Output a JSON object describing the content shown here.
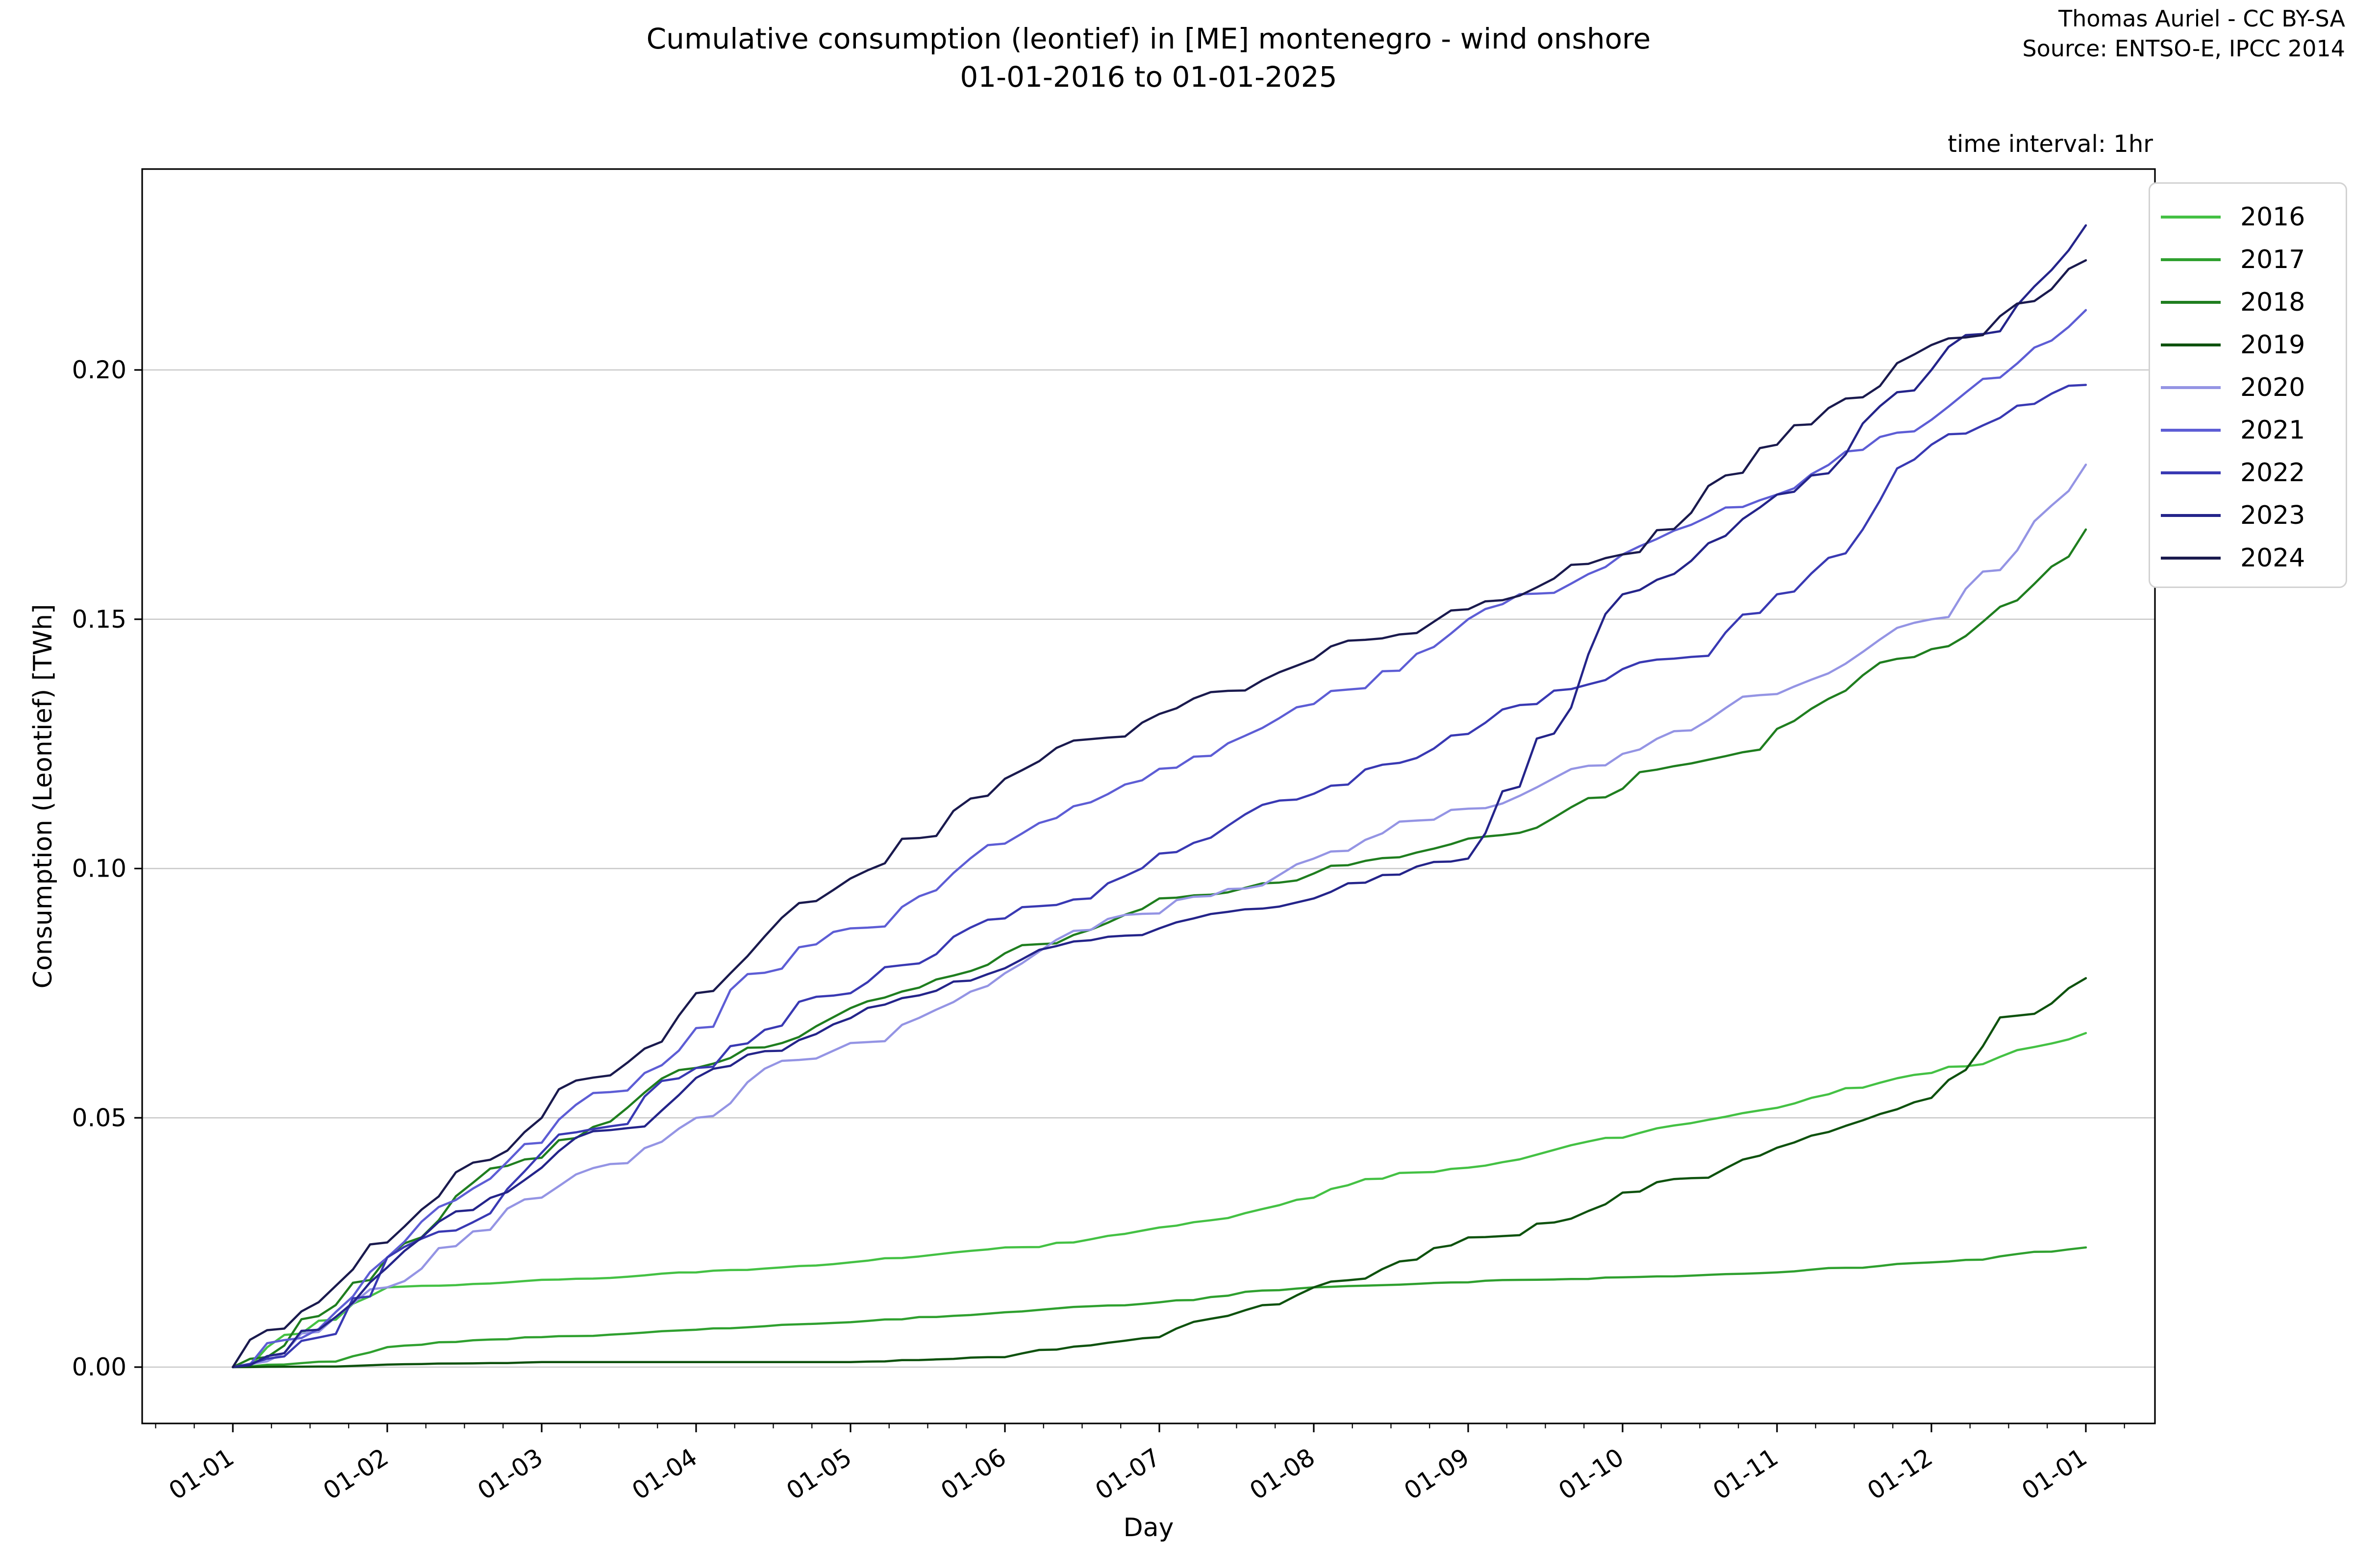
{
  "figure": {
    "title_line1": "Cumulative consumption (leontief) in [ME] montenegro - wind onshore",
    "title_line2": "01-01-2016 to 01-01-2025",
    "attribution_line1": "Thomas Auriel - CC BY-SA",
    "attribution_line2": "Source: ENTSO-E, IPCC 2014",
    "annotation": "time interval: 1hr"
  },
  "chart_data": {
    "type": "line",
    "title": "Cumulative consumption (leontief) in [ME] montenegro - wind onshore 01-01-2016 to 01-01-2025",
    "xlabel": "Day",
    "ylabel": "Consumption (Leontief) [TWh]",
    "x_tick_labels": [
      "01-01",
      "01-02",
      "01-03",
      "01-04",
      "01-05",
      "01-06",
      "01-07",
      "01-08",
      "01-09",
      "01-10",
      "01-11",
      "01-12",
      "01-01"
    ],
    "y_tick_labels": [
      "0.00",
      "0.05",
      "0.10",
      "0.15",
      "0.20"
    ],
    "y_ticks": [
      0.0,
      0.05,
      0.1,
      0.15,
      0.2
    ],
    "xlim_months": [
      -0.59,
      12.45
    ],
    "ylim": [
      -0.0113,
      0.2403
    ],
    "grid": "horizontal",
    "legend_position": "outside-upper-right",
    "units": "TWh",
    "series": [
      {
        "name": "2016",
        "color": "#44c144",
        "monthly_values": [
          0,
          0.016,
          0.0175,
          0.019,
          0.021,
          0.024,
          0.028,
          0.034,
          0.04,
          0.046,
          0.052,
          0.059,
          0.067
        ]
      },
      {
        "name": "2017",
        "color": "#2fa02f",
        "monthly_values": [
          0,
          0.004,
          0.006,
          0.0075,
          0.009,
          0.011,
          0.013,
          0.016,
          0.017,
          0.018,
          0.019,
          0.021,
          0.024
        ]
      },
      {
        "name": "2018",
        "color": "#1f7e1f",
        "monthly_values": [
          0,
          0.022,
          0.042,
          0.06,
          0.072,
          0.083,
          0.094,
          0.099,
          0.106,
          0.116,
          0.128,
          0.144,
          0.168
        ]
      },
      {
        "name": "2019",
        "color": "#0e520e",
        "monthly_values": [
          0,
          0.0005,
          0.001,
          0.001,
          0.001,
          0.002,
          0.006,
          0.016,
          0.026,
          0.035,
          0.044,
          0.054,
          0.078
        ]
      },
      {
        "name": "2020",
        "color": "#9494e4",
        "monthly_values": [
          0,
          0.016,
          0.034,
          0.05,
          0.065,
          0.079,
          0.091,
          0.102,
          0.112,
          0.123,
          0.135,
          0.15,
          0.181
        ]
      },
      {
        "name": "2021",
        "color": "#5d5dd5",
        "monthly_values": [
          0,
          0.022,
          0.045,
          0.068,
          0.088,
          0.105,
          0.12,
          0.133,
          0.15,
          0.163,
          0.175,
          0.19,
          0.212
        ]
      },
      {
        "name": "2022",
        "color": "#3939b3",
        "monthly_values": [
          0,
          0.022,
          0.043,
          0.06,
          0.075,
          0.09,
          0.103,
          0.115,
          0.127,
          0.14,
          0.155,
          0.185,
          0.197
        ]
      },
      {
        "name": "2023",
        "color": "#24248a",
        "monthly_values": [
          0,
          0.02,
          0.04,
          0.058,
          0.07,
          0.08,
          0.088,
          0.094,
          0.102,
          0.155,
          0.175,
          0.2,
          0.229
        ]
      },
      {
        "name": "2024",
        "color": "#1a1a4e",
        "monthly_values": [
          0,
          0.025,
          0.05,
          0.075,
          0.098,
          0.118,
          0.131,
          0.142,
          0.152,
          0.163,
          0.185,
          0.205,
          0.222
        ]
      }
    ]
  }
}
